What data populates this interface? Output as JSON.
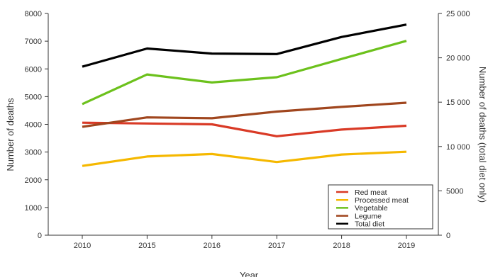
{
  "chart_data": {
    "type": "line",
    "x": [
      "2010",
      "2015",
      "2016",
      "2017",
      "2018",
      "2019"
    ],
    "xlabel": "Year",
    "ylabel": "Number of deaths",
    "y2label": "Number of deaths (total diet only)",
    "ylim": [
      0,
      8000
    ],
    "y2lim": [
      0,
      25000
    ],
    "y_ticks": [
      "0",
      "1000",
      "2000",
      "3000",
      "4000",
      "5000",
      "6000",
      "7000",
      "8000"
    ],
    "y2_ticks": [
      "0",
      "5000",
      "10 000",
      "15 000",
      "20 000",
      "25 000"
    ],
    "grid": false,
    "legend_position": "bottom-right",
    "series": [
      {
        "name": "Red meat",
        "color": "#d93a26",
        "axis": "left",
        "values": [
          4060,
          4030,
          4000,
          3570,
          3810,
          3950
        ]
      },
      {
        "name": "Processed meat",
        "color": "#f5b800",
        "axis": "left",
        "values": [
          2500,
          2840,
          2930,
          2640,
          2910,
          3010
        ]
      },
      {
        "name": "Vegetable",
        "color": "#6cc11c",
        "axis": "left",
        "values": [
          4730,
          5800,
          5510,
          5700,
          6360,
          7010
        ]
      },
      {
        "name": "Legume",
        "color": "#a0461e",
        "axis": "left",
        "values": [
          3910,
          4250,
          4220,
          4460,
          4630,
          4780
        ]
      },
      {
        "name": "Total diet",
        "color": "#000000",
        "axis": "right",
        "values": [
          19000,
          21050,
          20480,
          20420,
          22350,
          23750
        ]
      }
    ]
  }
}
